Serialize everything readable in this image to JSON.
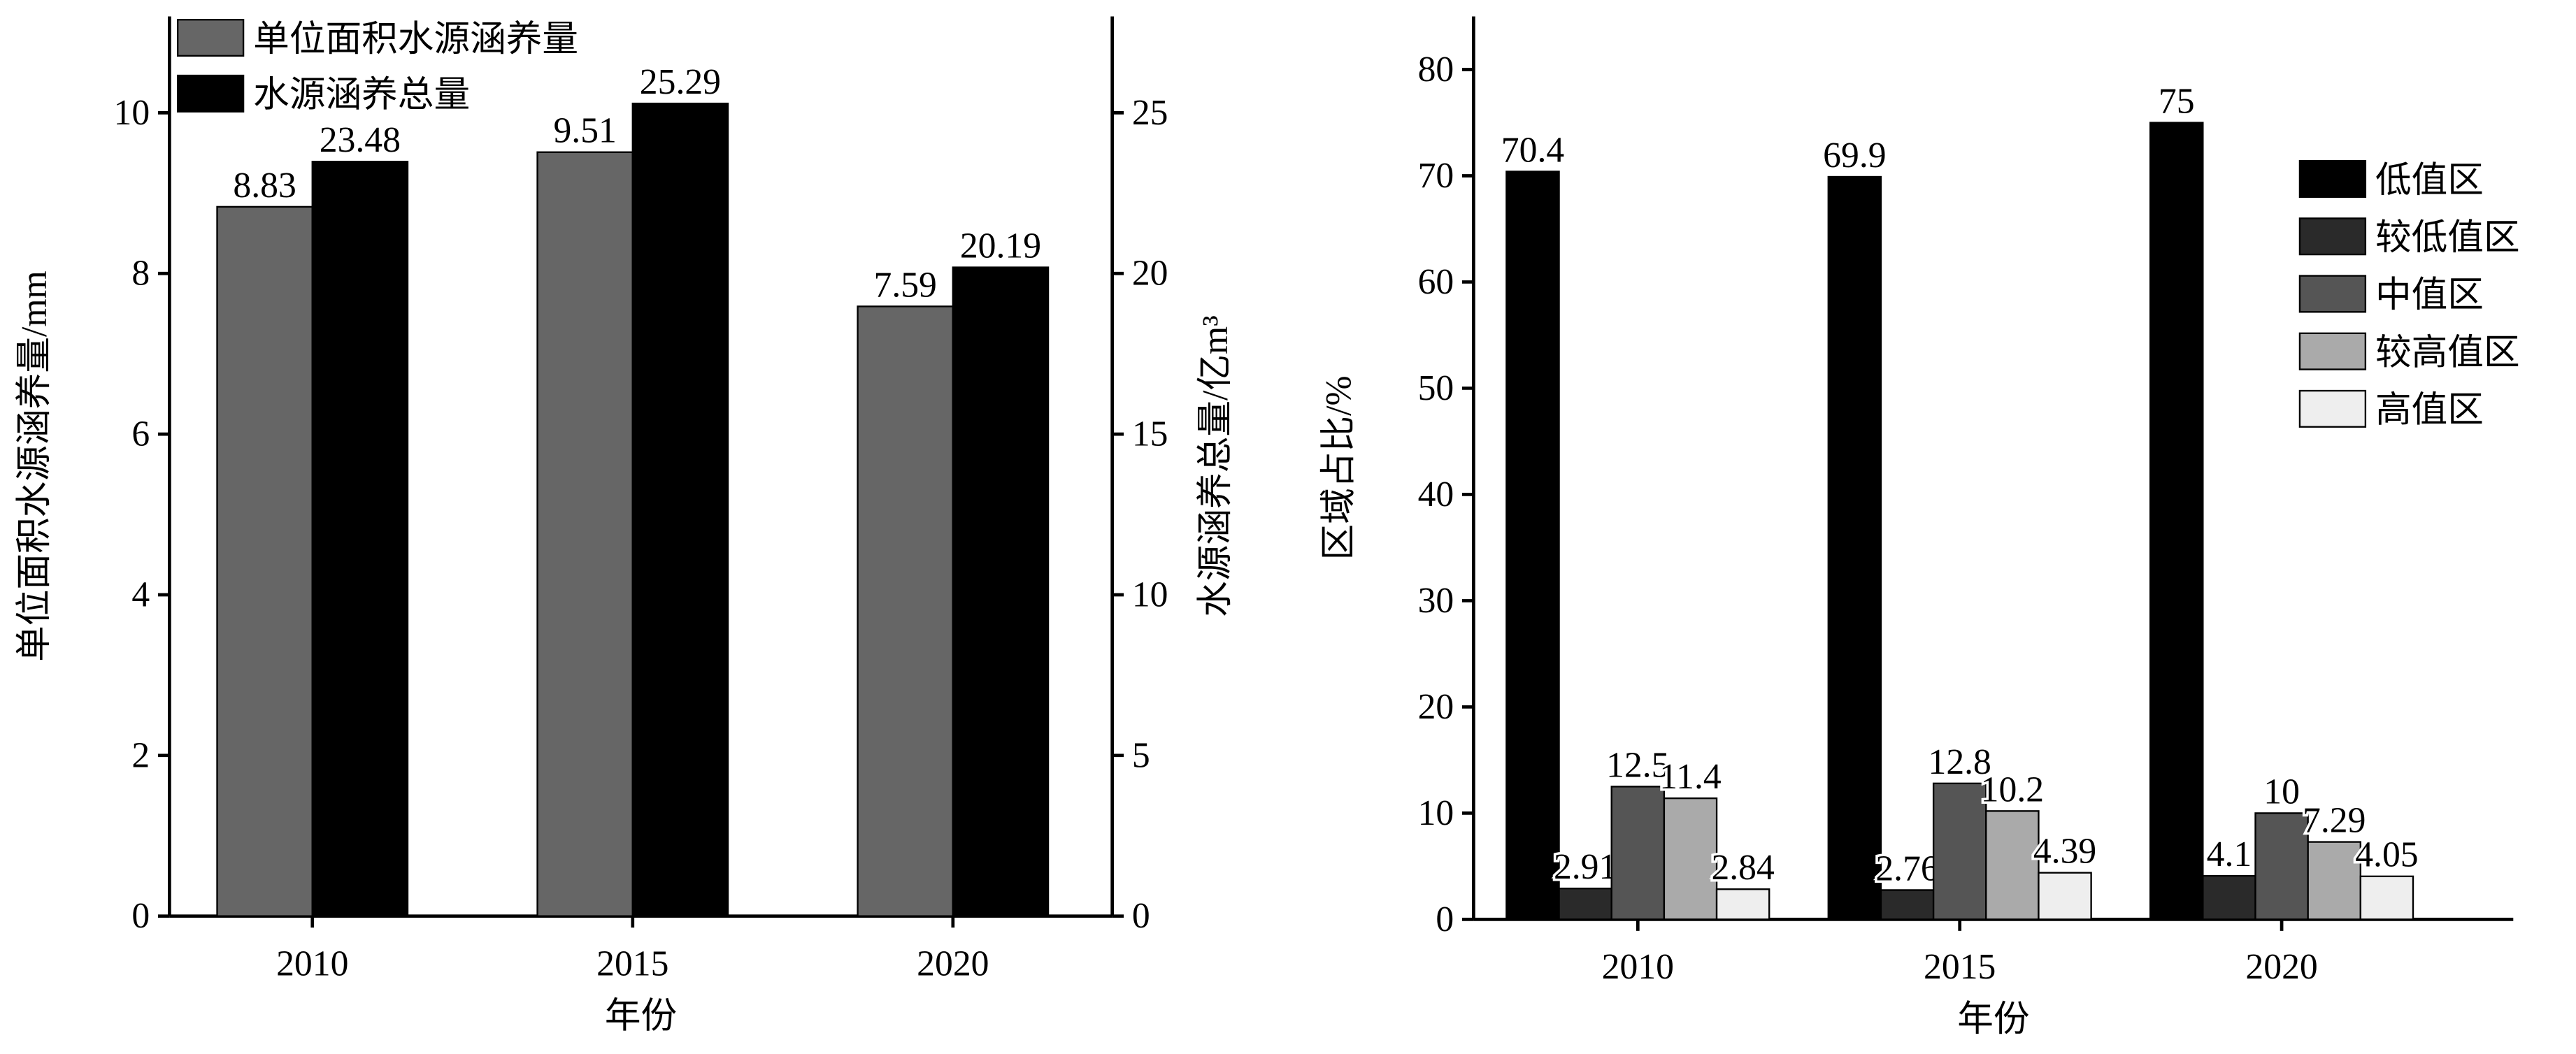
{
  "chart_data": [
    {
      "type": "bar",
      "categories": [
        "2010",
        "2015",
        "2020"
      ],
      "xlabel": "年份",
      "ylabel": "单位面积水源涵养量/mm",
      "y2label": "水源涵养总量/亿m³",
      "ylim": [
        0,
        11.2
      ],
      "yticks": [
        0,
        2,
        4,
        6,
        8,
        10
      ],
      "y2lim": [
        0,
        28
      ],
      "y2ticks": [
        0,
        5,
        10,
        15,
        20,
        25
      ],
      "series": [
        {
          "name": "单位面积水源涵养量",
          "color": "#666666",
          "values": [
            8.83,
            9.51,
            7.59
          ]
        },
        {
          "name": "水源涵养总量",
          "color": "#000000",
          "axis": "y2",
          "values": [
            23.48,
            25.29,
            20.19
          ]
        }
      ]
    },
    {
      "type": "bar",
      "categories": [
        "2010",
        "2015",
        "2020"
      ],
      "xlabel": "年份",
      "ylabel": "区域占比/%",
      "ylim": [
        0,
        85
      ],
      "yticks": [
        0,
        10,
        20,
        30,
        40,
        50,
        60,
        70,
        80
      ],
      "series": [
        {
          "name": "低值区",
          "color": "#000000",
          "values": [
            70.4,
            69.9,
            75
          ]
        },
        {
          "name": "较低值区",
          "color": "#2a2a2a",
          "values": [
            2.91,
            2.76,
            4.1
          ]
        },
        {
          "name": "中值区",
          "color": "#555555",
          "values": [
            12.5,
            12.8,
            10
          ]
        },
        {
          "name": "较高值区",
          "color": "#aaaaaa",
          "values": [
            11.4,
            10.2,
            7.29
          ]
        },
        {
          "name": "高值区",
          "color": "#eeeeee",
          "values": [
            2.84,
            4.39,
            4.05
          ]
        }
      ]
    }
  ]
}
